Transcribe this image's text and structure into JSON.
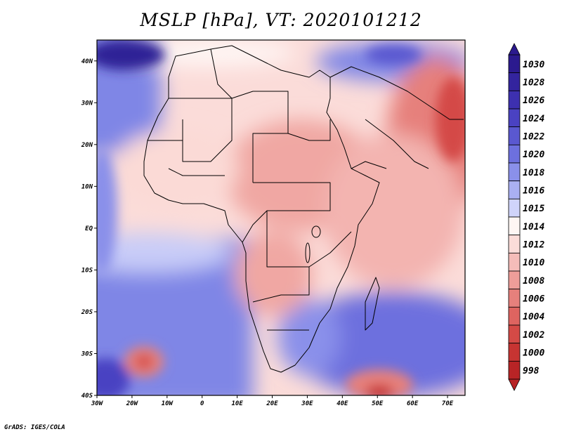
{
  "title": "MSLP [hPa], VT: 2020101212",
  "credit": "GrADS: IGES/COLA",
  "map": {
    "lon_range": [
      -30,
      75
    ],
    "lat_range": [
      -40,
      45
    ],
    "lon_ticks": [
      {
        "value": -30,
        "label": "30W"
      },
      {
        "value": -20,
        "label": "20W"
      },
      {
        "value": -10,
        "label": "10W"
      },
      {
        "value": 0,
        "label": "0"
      },
      {
        "value": 10,
        "label": "10E"
      },
      {
        "value": 20,
        "label": "20E"
      },
      {
        "value": 30,
        "label": "30E"
      },
      {
        "value": 40,
        "label": "40E"
      },
      {
        "value": 50,
        "label": "50E"
      },
      {
        "value": 60,
        "label": "60E"
      },
      {
        "value": 70,
        "label": "70E"
      }
    ],
    "lat_ticks": [
      {
        "value": 40,
        "label": "40N"
      },
      {
        "value": 30,
        "label": "30N"
      },
      {
        "value": 20,
        "label": "20N"
      },
      {
        "value": 10,
        "label": "10N"
      },
      {
        "value": 0,
        "label": "EQ"
      },
      {
        "value": -10,
        "label": "10S"
      },
      {
        "value": -20,
        "label": "20S"
      },
      {
        "value": -30,
        "label": "30S"
      },
      {
        "value": -40,
        "label": "40S"
      }
    ]
  },
  "colorbar": {
    "levels": [
      {
        "label": "1030",
        "color": "#2b1a8e"
      },
      {
        "label": "1028",
        "color": "#33249e"
      },
      {
        "label": "1026",
        "color": "#3d30b0"
      },
      {
        "label": "1024",
        "color": "#4a42c2"
      },
      {
        "label": "1022",
        "color": "#5a58d0"
      },
      {
        "label": "1020",
        "color": "#6d70de"
      },
      {
        "label": "1018",
        "color": "#8a90ea"
      },
      {
        "label": "1016",
        "color": "#aab0f2"
      },
      {
        "label": "1015",
        "color": "#d0d4fa"
      },
      {
        "label": "1014",
        "color": "#fef6f4"
      },
      {
        "label": "1012",
        "color": "#fbdcd9"
      },
      {
        "label": "1010",
        "color": "#f5bcb9"
      },
      {
        "label": "1008",
        "color": "#ee9d99"
      },
      {
        "label": "1006",
        "color": "#e6807c"
      },
      {
        "label": "1004",
        "color": "#de6460"
      },
      {
        "label": "1002",
        "color": "#d44a46"
      },
      {
        "label": "1000",
        "color": "#c73432"
      },
      {
        "label": "998",
        "color": "#b82426"
      }
    ]
  }
}
